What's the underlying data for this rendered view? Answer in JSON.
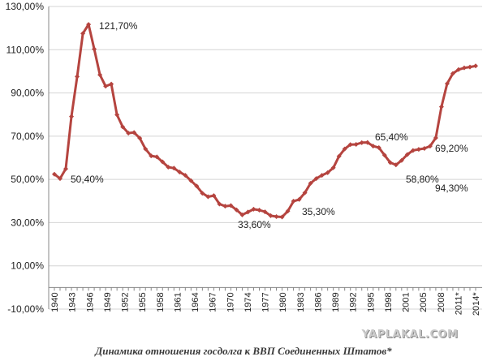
{
  "chart_data": {
    "type": "line",
    "title": "",
    "xlabel": "",
    "ylabel": "",
    "ylim": [
      -10,
      130
    ],
    "grid": true,
    "y_ticks": [
      "-10,00%",
      "10,00%",
      "30,00%",
      "50,00%",
      "70,00%",
      "90,00%",
      "110,00%",
      "130,00%"
    ],
    "x_ticks": [
      "1940",
      "1943",
      "1946",
      "1949",
      "1952",
      "1955",
      "1958",
      "1961",
      "1964",
      "1967",
      "1970",
      "1974",
      "1977",
      "1980",
      "1983",
      "1986",
      "1989",
      "1992",
      "1995",
      "1998",
      "2001",
      "2005",
      "2008",
      "2011*",
      "2014*"
    ],
    "series": [
      {
        "color": "#b5443f",
        "values": [
          52.4,
          50.4,
          54.9,
          79.1,
          97.6,
          117.5,
          121.7,
          110.3,
          98.4,
          93.1,
          94.1,
          79.9,
          74.3,
          71.4,
          71.7,
          69.1,
          64.1,
          60.9,
          60.4,
          58.1,
          55.7,
          55.2,
          53.4,
          51.9,
          49.4,
          46.9,
          43.6,
          42.0,
          42.5,
          38.6,
          37.6,
          37.9,
          35.9,
          33.6,
          34.9,
          36.2,
          35.8,
          35.0,
          33.2,
          32.8,
          32.6,
          35.3,
          39.9,
          40.7,
          43.8,
          48.2,
          50.4,
          51.9,
          53.1,
          55.4,
          60.7,
          64.1,
          66.1,
          66.2,
          67.0,
          67.1,
          65.4,
          64.7,
          61.2,
          57.8,
          56.7,
          58.8,
          61.5,
          63.4,
          63.9,
          64.3,
          65.4,
          69.2,
          83.6,
          94.3,
          99.0,
          100.8,
          101.6,
          102.0,
          102.5
        ]
      }
    ],
    "annotations": [
      "121,70%",
      "50,40%",
      "33,60%",
      "35,30%",
      "65,40%",
      "58,80%",
      "69,20%",
      "94,30%"
    ]
  },
  "watermark": "YAPLAKAL.COM",
  "caption": "Динамика отношения госдолга к ВВП Соединенных Штатов*"
}
